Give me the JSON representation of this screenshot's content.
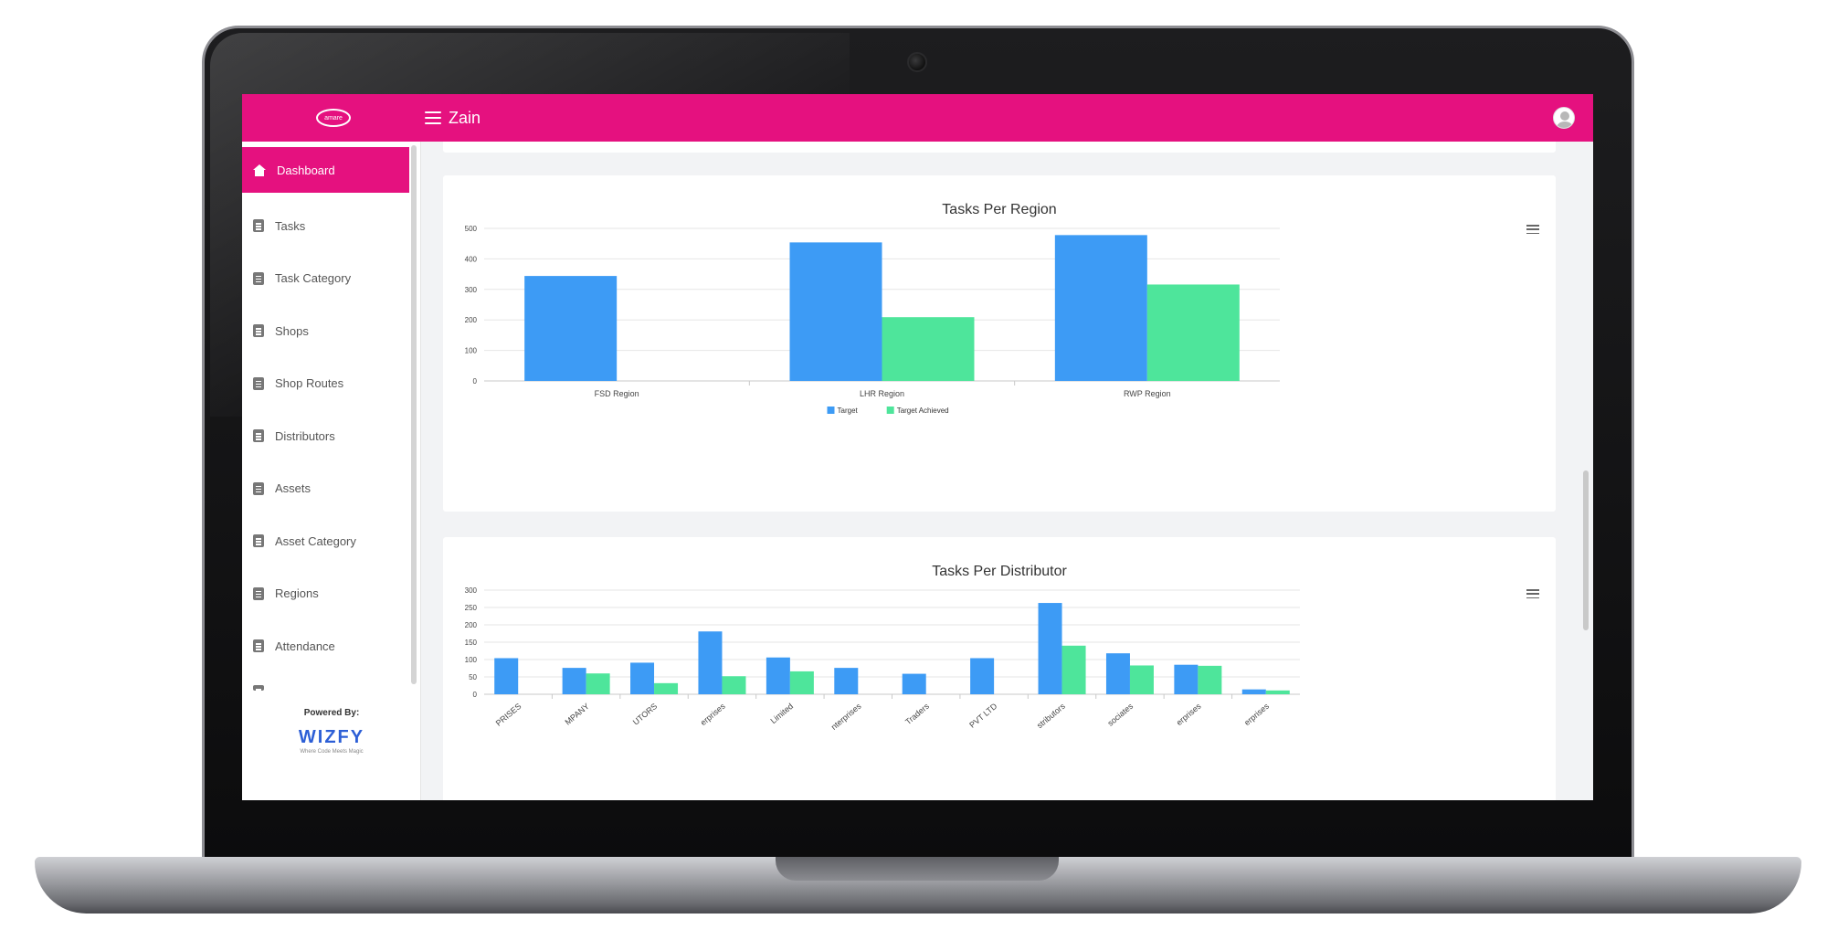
{
  "topbar": {
    "title": "Zain",
    "logo_text": "amare"
  },
  "sidebar": {
    "items": [
      {
        "label": "Dashboard",
        "active": true
      },
      {
        "label": "Tasks"
      },
      {
        "label": "Task Category"
      },
      {
        "label": "Shops"
      },
      {
        "label": "Shop Routes"
      },
      {
        "label": "Distributors"
      },
      {
        "label": "Assets"
      },
      {
        "label": "Asset Category"
      },
      {
        "label": "Regions"
      },
      {
        "label": "Attendance"
      }
    ],
    "powered_by": "Powered By:",
    "brand": "WIZFY",
    "brand_tagline": "Where Code Meets Magic"
  },
  "colors": {
    "accent": "#e5117f",
    "target": "#3d9bf5",
    "achieved": "#4ee59b"
  },
  "chart_data": [
    {
      "type": "bar",
      "title": "Tasks Per Region",
      "categories": [
        "FSD Region",
        "LHR Region",
        "RWP Region"
      ],
      "series": [
        {
          "name": "Target",
          "values": [
            344,
            454,
            478
          ]
        },
        {
          "name": "Target Achieved",
          "values": [
            0,
            209,
            316
          ]
        }
      ],
      "ylim": [
        0,
        500
      ],
      "yticks": [
        0,
        100,
        200,
        300,
        400,
        500
      ],
      "grid": true,
      "legend": "bottom-center"
    },
    {
      "type": "bar",
      "title": "Tasks Per Distributor",
      "categories": [
        "PRISES",
        "MPANY",
        "UTORS",
        "erprises",
        "Limited",
        "nterprises",
        "Traders",
        "PVT LTD",
        "stributors",
        "sociates",
        "erprises",
        "erprises"
      ],
      "series": [
        {
          "name": "Target",
          "values": [
            104,
            76,
            91,
            181,
            106,
            76,
            59,
            104,
            263,
            118,
            85,
            14
          ]
        },
        {
          "name": "Target Achieved",
          "values": [
            0,
            60,
            32,
            52,
            66,
            0,
            0,
            0,
            140,
            83,
            82,
            11
          ]
        }
      ],
      "ylim": [
        0,
        300
      ],
      "yticks": [
        0,
        50,
        100,
        150,
        200,
        250,
        300
      ],
      "grid": true
    }
  ]
}
